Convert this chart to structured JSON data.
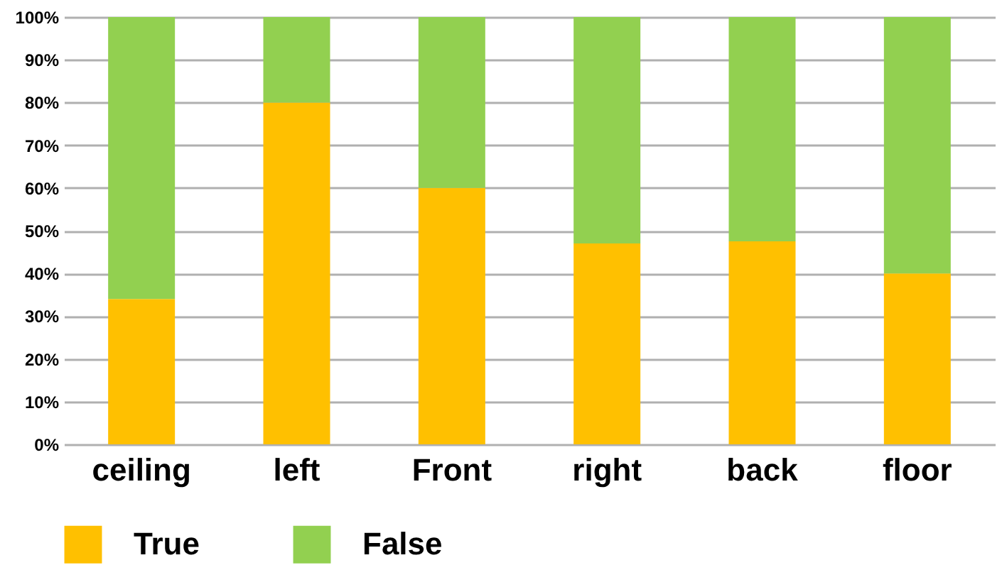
{
  "chart_data": {
    "type": "bar",
    "stacked": true,
    "categories": [
      "ceiling",
      "left",
      "Front",
      "right",
      "back",
      "floor"
    ],
    "series": [
      {
        "name": "True",
        "color": "#ffc000",
        "values": [
          34,
          80,
          60,
          47,
          47.5,
          40
        ]
      },
      {
        "name": "False",
        "color": "#92d050",
        "values": [
          66,
          20,
          40,
          53,
          52.5,
          60
        ]
      }
    ],
    "ylim": [
      0,
      100
    ],
    "yticks": [
      {
        "value": 0,
        "label": "0%"
      },
      {
        "value": 10,
        "label": "10%"
      },
      {
        "value": 20,
        "label": "20%"
      },
      {
        "value": 30,
        "label": "30%"
      },
      {
        "value": 40,
        "label": "40%"
      },
      {
        "value": 50,
        "label": "50%"
      },
      {
        "value": 60,
        "label": "60%"
      },
      {
        "value": 70,
        "label": "70%"
      },
      {
        "value": 80,
        "label": "80%"
      },
      {
        "value": 90,
        "label": "90%"
      },
      {
        "value": 100,
        "label": "100%"
      }
    ],
    "grid": "y",
    "legend": "bottom"
  }
}
